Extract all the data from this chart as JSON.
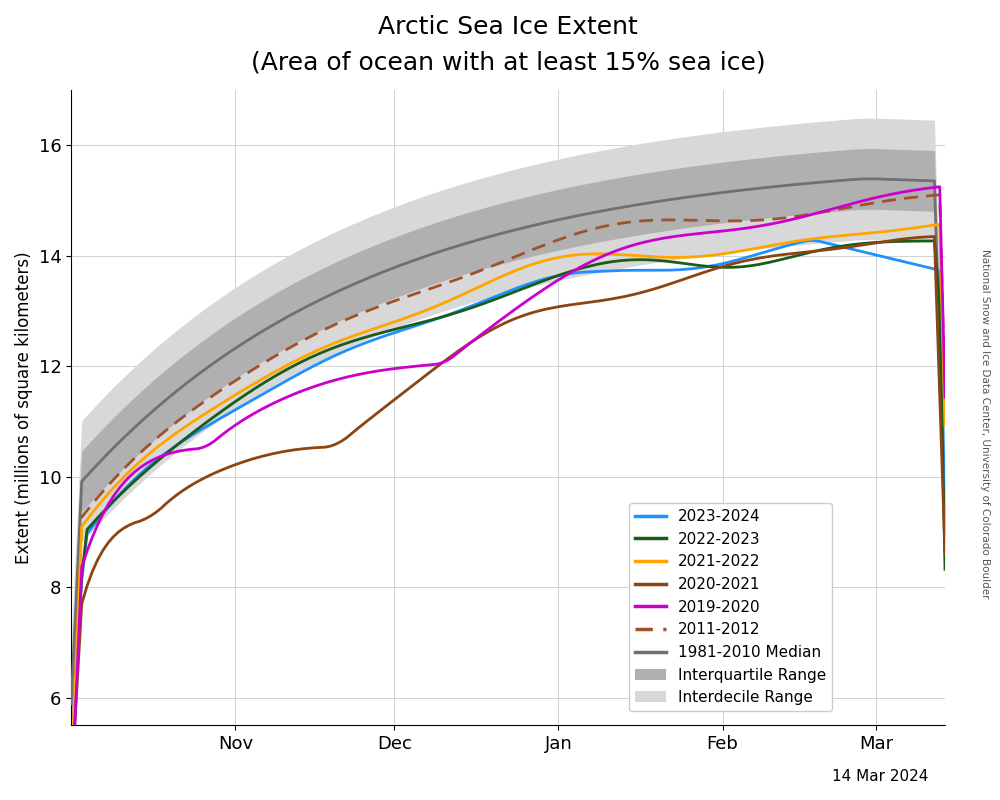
{
  "title_line1": "Arctic Sea Ice Extent",
  "title_line2": "(Area of ocean with at least 15% sea ice)",
  "ylabel": "Extent (millions of square kilometers)",
  "date_label": "14 Mar 2024",
  "watermark": "National Snow and Ice Data Center, University of Colorado Boulder",
  "ylim": [
    5.5,
    17.0
  ],
  "yticks": [
    6,
    8,
    10,
    12,
    14,
    16
  ],
  "colors": {
    "2023-2024": "#1E90FF",
    "2022-2023": "#1A5C1A",
    "2021-2022": "#FFA500",
    "2020-2021": "#8B4513",
    "2019-2020": "#CC00CC",
    "2011-2012": "#A0522D",
    "median": "#707070",
    "iqr": "#B0B0B0",
    "idr": "#D8D8D8"
  }
}
